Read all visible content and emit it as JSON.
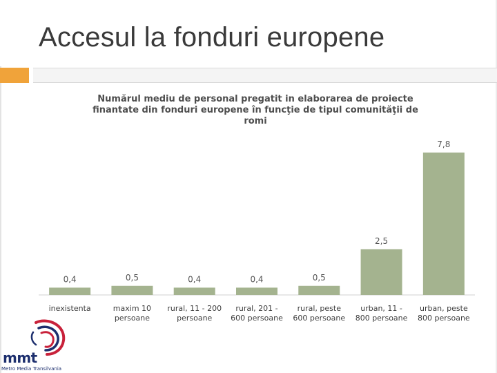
{
  "slide": {
    "title": "Accesul la fonduri europene"
  },
  "logo": {
    "mark": "mmt",
    "subtitle": "Metro Media Transilvania"
  },
  "chart_data": {
    "type": "bar",
    "title": "Numărul mediu de personal pregatit in elaborarea de proiecte finantate din fonduri europene în funcţie de tipul comunităţii de romi",
    "title_lines": [
      "Numărul mediu de personal pregatit in elaborarea de proiecte",
      "finantate din fonduri europene în funcţie de tipul comunităţii de",
      "romi"
    ],
    "categories": [
      [
        "inexistenta"
      ],
      [
        "maxim 10",
        "persoane"
      ],
      [
        "rural, 11 - 200",
        "persoane"
      ],
      [
        "rural, 201 -",
        "600 persoane"
      ],
      [
        "rural, peste",
        "600 persoane"
      ],
      [
        "urban, 11 -",
        "800 persoane"
      ],
      [
        "urban, peste",
        "800 persoane"
      ]
    ],
    "values": [
      0.4,
      0.5,
      0.4,
      0.4,
      0.5,
      2.5,
      7.8
    ],
    "value_labels": [
      "0,4",
      "0,5",
      "0,4",
      "0,4",
      "0,5",
      "2,5",
      "7,8"
    ],
    "ylim": [
      0,
      8.7
    ],
    "bar_color": "#a4b38f",
    "xlabel": "",
    "ylabel": ""
  }
}
